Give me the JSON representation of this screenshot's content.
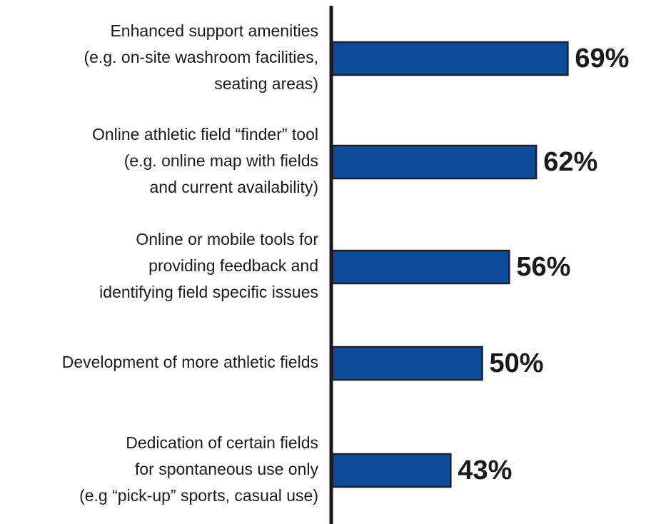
{
  "chart_data": {
    "type": "bar",
    "orientation": "horizontal",
    "categories": [
      [
        "Enhanced support amenities",
        "(e.g. on-site washroom facilities,",
        "seating areas)"
      ],
      [
        "Online athletic field “finder” tool",
        "(e.g. online map with fields",
        "and current availability)"
      ],
      [
        "Online or mobile tools for",
        "providing feedback and",
        "identifying field specific issues"
      ],
      [
        "Development of more athletic fields"
      ],
      [
        "Dedication of certain fields",
        "for spontaneous use only",
        "(e.g “pick-up” sports, casual use)"
      ]
    ],
    "values": [
      69,
      62,
      56,
      50,
      43
    ],
    "value_labels": [
      "69%",
      "62%",
      "56%",
      "50%",
      "43%"
    ],
    "color": "#0e4c9a"
  }
}
